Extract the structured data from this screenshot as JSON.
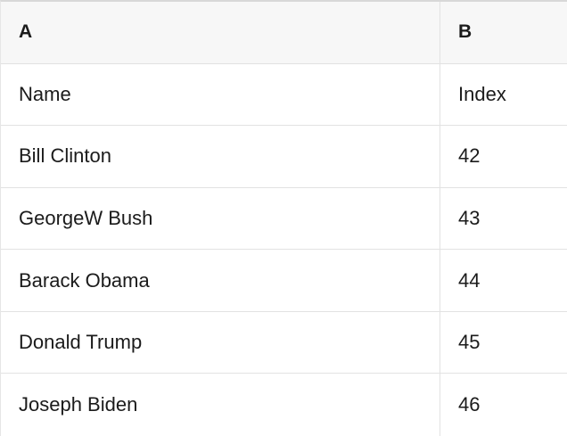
{
  "table": {
    "columns": [
      {
        "label": "A"
      },
      {
        "label": "B"
      }
    ],
    "rows": [
      [
        "Name",
        "Index"
      ],
      [
        "Bill Clinton",
        "42"
      ],
      [
        "GeorgeW Bush",
        "43"
      ],
      [
        "Barack Obama",
        "44"
      ],
      [
        "Donald Trump",
        "45"
      ],
      [
        "Joseph Biden",
        "46"
      ]
    ],
    "colors": {
      "header_bg": "#f7f7f7",
      "grid_border": "#e2e2e2",
      "top_border": "#d8d8d8",
      "text": "#1b1b1b"
    }
  }
}
